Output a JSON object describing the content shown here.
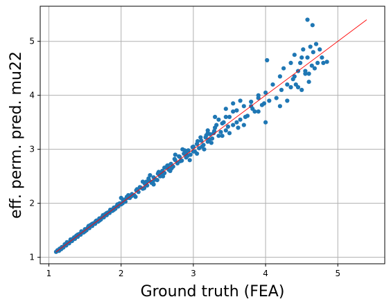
{
  "chart_data": {
    "type": "scatter",
    "title": "",
    "xlabel": "Ground truth (FEA)",
    "ylabel": "eff. perm. pred. mu22",
    "xlim": [
      0.88,
      5.65
    ],
    "ylim": [
      0.88,
      5.65
    ],
    "xticks": [
      1,
      2,
      3,
      4,
      5
    ],
    "yticks": [
      1,
      2,
      3,
      4,
      5
    ],
    "grid": true,
    "colors": {
      "points": "#1f77b4",
      "reference_line": "#ff0000",
      "grid": "#b0b0b0"
    },
    "reference_line": {
      "x": [
        1.1,
        5.4
      ],
      "y": [
        1.1,
        5.4
      ]
    },
    "series": [
      {
        "values": [
          [
            1.1,
            1.1
          ],
          [
            1.12,
            1.13
          ],
          [
            1.14,
            1.12
          ],
          [
            1.15,
            1.16
          ],
          [
            1.17,
            1.15
          ],
          [
            1.18,
            1.19
          ],
          [
            1.2,
            1.18
          ],
          [
            1.22,
            1.24
          ],
          [
            1.24,
            1.22
          ],
          [
            1.26,
            1.27
          ],
          [
            1.28,
            1.26
          ],
          [
            1.3,
            1.31
          ],
          [
            1.32,
            1.3
          ],
          [
            1.34,
            1.35
          ],
          [
            1.36,
            1.34
          ],
          [
            1.38,
            1.4
          ],
          [
            1.4,
            1.38
          ],
          [
            1.42,
            1.43
          ],
          [
            1.44,
            1.42
          ],
          [
            1.46,
            1.47
          ],
          [
            1.48,
            1.46
          ],
          [
            1.5,
            1.52
          ],
          [
            1.52,
            1.5
          ],
          [
            1.54,
            1.55
          ],
          [
            1.56,
            1.54
          ],
          [
            1.58,
            1.6
          ],
          [
            1.6,
            1.58
          ],
          [
            1.62,
            1.63
          ],
          [
            1.64,
            1.62
          ],
          [
            1.66,
            1.68
          ],
          [
            1.68,
            1.66
          ],
          [
            1.7,
            1.72
          ],
          [
            1.72,
            1.7
          ],
          [
            1.74,
            1.75
          ],
          [
            1.76,
            1.74
          ],
          [
            1.78,
            1.8
          ],
          [
            1.8,
            1.78
          ],
          [
            1.82,
            1.83
          ],
          [
            1.84,
            1.82
          ],
          [
            1.86,
            1.88
          ],
          [
            1.88,
            1.86
          ],
          [
            1.9,
            1.92
          ],
          [
            1.92,
            1.9
          ],
          [
            1.94,
            1.95
          ],
          [
            1.96,
            1.94
          ],
          [
            1.98,
            2.0
          ],
          [
            2.0,
            1.98
          ],
          [
            2.03,
            2.05
          ],
          [
            2.06,
            2.03
          ],
          [
            2.09,
            2.1
          ],
          [
            2.12,
            2.1
          ],
          [
            2.15,
            2.17
          ],
          [
            2.18,
            2.15
          ],
          [
            2.21,
            2.24
          ],
          [
            2.24,
            2.21
          ],
          [
            2.27,
            2.29
          ],
          [
            2.3,
            2.27
          ],
          [
            2.33,
            2.36
          ],
          [
            2.36,
            2.33
          ],
          [
            2.39,
            2.42
          ],
          [
            2.42,
            2.38
          ],
          [
            2.45,
            2.48
          ],
          [
            2.48,
            2.44
          ],
          [
            2.51,
            2.55
          ],
          [
            2.54,
            2.5
          ],
          [
            2.57,
            2.6
          ],
          [
            2.6,
            2.56
          ],
          [
            2.63,
            2.67
          ],
          [
            2.66,
            2.62
          ],
          [
            2.69,
            2.73
          ],
          [
            2.72,
            2.68
          ],
          [
            2.75,
            2.8
          ],
          [
            2.78,
            2.74
          ],
          [
            2.81,
            2.86
          ],
          [
            2.84,
            2.79
          ],
          [
            2.87,
            2.92
          ],
          [
            2.9,
            2.85
          ],
          [
            2.93,
            2.98
          ],
          [
            2.96,
            2.9
          ],
          [
            2.99,
            3.04
          ],
          [
            3.02,
            2.96
          ],
          [
            3.05,
            3.1
          ],
          [
            3.08,
            3.02
          ],
          [
            3.11,
            3.16
          ],
          [
            3.14,
            3.08
          ],
          [
            3.17,
            3.22
          ],
          [
            3.2,
            3.14
          ],
          [
            3.23,
            3.28
          ],
          [
            3.26,
            3.2
          ],
          [
            3.29,
            3.34
          ],
          [
            1.85,
            1.88
          ],
          [
            2.05,
            2.07
          ],
          [
            2.22,
            2.26
          ],
          [
            2.35,
            2.4
          ],
          [
            2.5,
            2.43
          ],
          [
            2.6,
            2.66
          ],
          [
            2.7,
            2.65
          ],
          [
            2.8,
            2.87
          ],
          [
            2.9,
            2.95
          ],
          [
            3.0,
            3.05
          ],
          [
            3.05,
            2.92
          ],
          [
            3.1,
            3.22
          ],
          [
            3.2,
            3.3
          ],
          [
            3.25,
            3.12
          ],
          [
            3.3,
            3.4
          ],
          [
            3.35,
            3.25
          ],
          [
            3.4,
            3.48
          ],
          [
            3.45,
            3.35
          ],
          [
            3.5,
            3.6
          ],
          [
            3.55,
            3.45
          ],
          [
            3.6,
            3.72
          ],
          [
            3.65,
            3.55
          ],
          [
            3.7,
            3.8
          ],
          [
            3.75,
            3.62
          ],
          [
            3.8,
            3.88
          ],
          [
            3.85,
            3.7
          ],
          [
            3.9,
            3.95
          ],
          [
            3.95,
            3.82
          ],
          [
            4.0,
            4.05
          ],
          [
            4.05,
            3.9
          ],
          [
            3.35,
            3.55
          ],
          [
            3.45,
            3.6
          ],
          [
            3.55,
            3.7
          ],
          [
            3.6,
            3.5
          ],
          [
            3.7,
            3.45
          ],
          [
            3.5,
            3.3
          ],
          [
            3.4,
            3.25
          ],
          [
            3.62,
            3.4
          ],
          [
            3.72,
            3.6
          ],
          [
            3.82,
            3.75
          ],
          [
            3.9,
            3.7
          ],
          [
            3.98,
            3.85
          ],
          [
            4.02,
            4.65
          ],
          [
            4.1,
            4.2
          ],
          [
            4.15,
            3.95
          ],
          [
            4.2,
            4.35
          ],
          [
            4.22,
            4.1
          ],
          [
            4.25,
            4.5
          ],
          [
            4.3,
            4.2
          ],
          [
            4.35,
            4.6
          ],
          [
            4.38,
            4.3
          ],
          [
            4.4,
            4.75
          ],
          [
            4.42,
            4.2
          ],
          [
            4.45,
            4.45
          ],
          [
            4.48,
            4.6
          ],
          [
            4.5,
            4.1
          ],
          [
            4.52,
            4.85
          ],
          [
            4.55,
            4.4
          ],
          [
            4.58,
            4.7
          ],
          [
            4.6,
            4.25
          ],
          [
            4.62,
            4.9
          ],
          [
            4.64,
            4.55
          ],
          [
            4.66,
            4.8
          ],
          [
            4.68,
            4.5
          ],
          [
            4.7,
            4.95
          ],
          [
            4.72,
            4.6
          ],
          [
            4.75,
            4.85
          ],
          [
            4.78,
            4.7
          ],
          [
            4.8,
            4.6
          ],
          [
            4.85,
            4.62
          ],
          [
            4.58,
            5.4
          ],
          [
            4.65,
            5.3
          ],
          [
            4.45,
            4.15
          ],
          [
            4.2,
            3.8
          ],
          [
            4.3,
            3.9
          ],
          [
            4.6,
            4.4
          ],
          [
            4.55,
            4.45
          ],
          [
            4.4,
            4.35
          ],
          [
            4.35,
            4.15
          ],
          [
            4.5,
            4.7
          ],
          [
            4.0,
            3.5
          ],
          [
            3.9,
            4.0
          ],
          [
            3.8,
            3.8
          ],
          [
            3.65,
            3.9
          ],
          [
            3.55,
            3.85
          ],
          [
            3.45,
            3.75
          ],
          [
            3.3,
            3.6
          ],
          [
            3.2,
            3.35
          ],
          [
            3.15,
            3.0
          ],
          [
            2.95,
            2.8
          ],
          [
            2.85,
            3.0
          ],
          [
            2.75,
            2.9
          ],
          [
            2.65,
            2.7
          ],
          [
            2.55,
            2.55
          ],
          [
            2.45,
            2.35
          ],
          [
            2.4,
            2.52
          ],
          [
            2.3,
            2.4
          ],
          [
            2.2,
            2.12
          ],
          [
            2.1,
            2.15
          ],
          [
            2.0,
            2.1
          ],
          [
            1.75,
            1.78
          ],
          [
            1.65,
            1.67
          ],
          [
            1.55,
            1.58
          ],
          [
            1.45,
            1.48
          ],
          [
            1.35,
            1.37
          ],
          [
            1.25,
            1.28
          ],
          [
            1.15,
            1.14
          ],
          [
            1.3,
            1.33
          ],
          [
            1.4,
            1.42
          ],
          [
            1.5,
            1.48
          ],
          [
            1.6,
            1.62
          ],
          [
            1.7,
            1.68
          ],
          [
            1.8,
            1.82
          ],
          [
            1.9,
            1.88
          ],
          [
            1.95,
            1.98
          ],
          [
            2.02,
            2.0
          ],
          [
            2.08,
            2.12
          ],
          [
            2.14,
            2.13
          ],
          [
            2.26,
            2.3
          ],
          [
            2.32,
            2.28
          ],
          [
            2.38,
            2.46
          ],
          [
            2.44,
            2.4
          ],
          [
            2.52,
            2.58
          ],
          [
            2.58,
            2.5
          ],
          [
            2.64,
            2.7
          ],
          [
            2.68,
            2.6
          ],
          [
            2.74,
            2.82
          ],
          [
            2.82,
            2.78
          ],
          [
            2.88,
            2.98
          ],
          [
            2.92,
            2.88
          ],
          [
            3.0,
            2.96
          ],
          [
            3.06,
            3.15
          ],
          [
            3.12,
            3.05
          ],
          [
            3.18,
            3.26
          ],
          [
            3.22,
            3.18
          ],
          [
            3.28,
            3.3
          ],
          [
            3.32,
            3.45
          ],
          [
            3.38,
            3.32
          ],
          [
            3.42,
            3.5
          ],
          [
            3.48,
            3.42
          ]
        ]
      }
    ]
  }
}
